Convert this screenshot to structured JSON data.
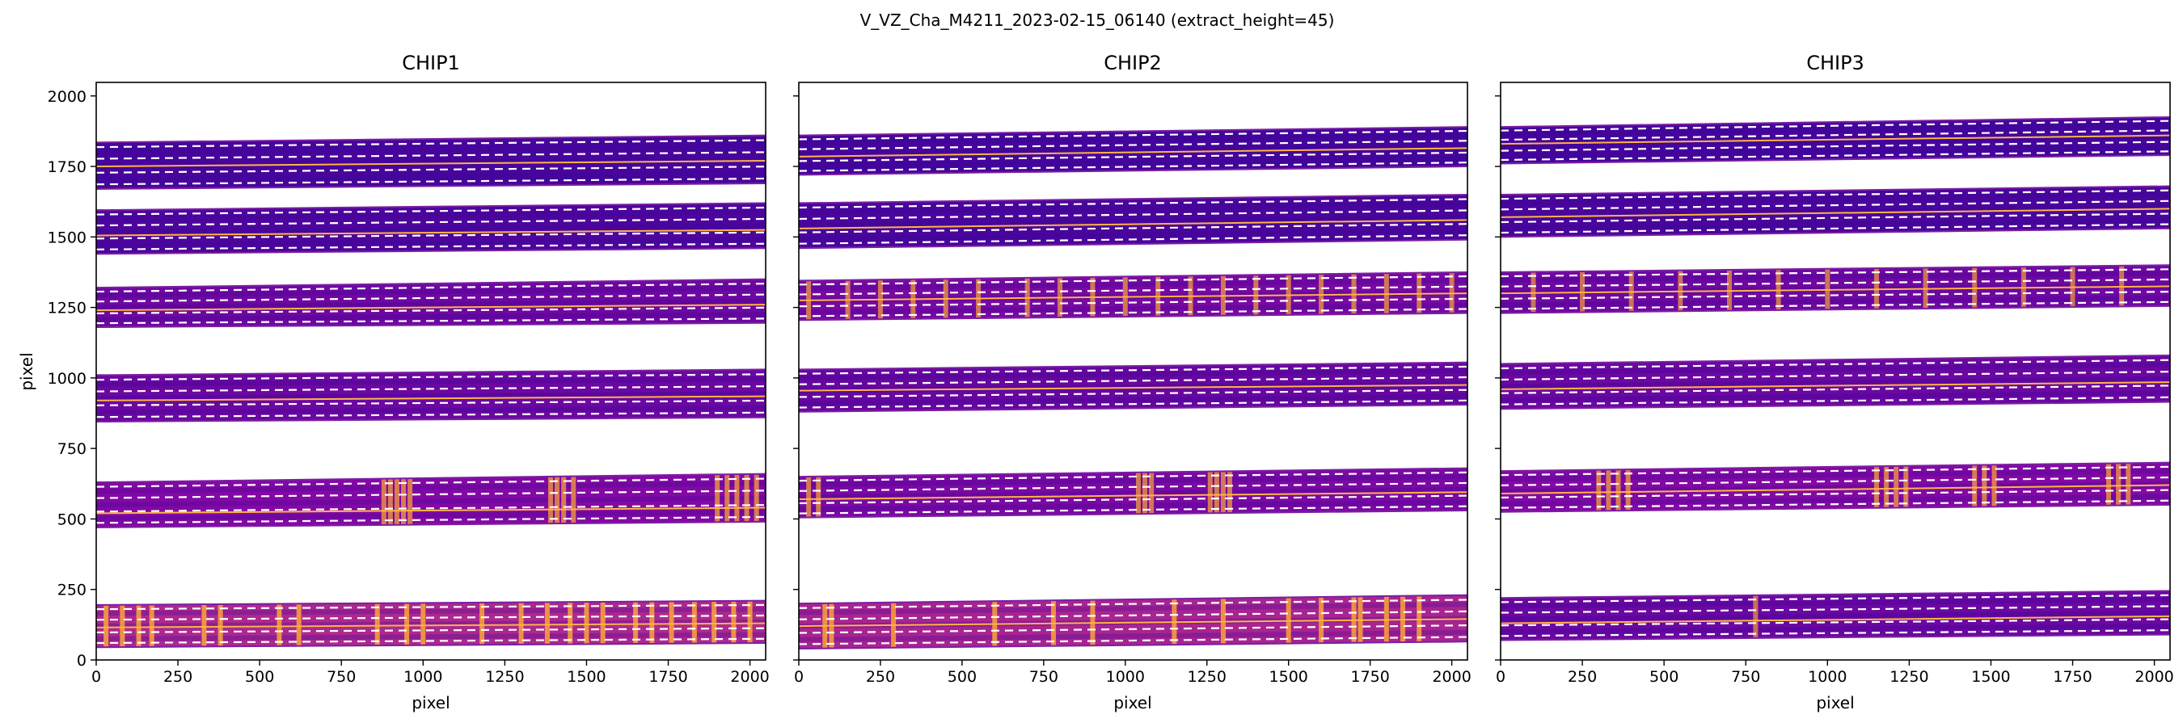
{
  "title": "V_VZ_Cha_M4211_2023-02-15_06140  (extract_height=45)",
  "colors": {
    "trace_center": "#ffb347",
    "extract_bound": "#ffffff",
    "low": "#3a049a",
    "mid": "#8b0aa5",
    "high": "#fca636",
    "frame": "#000000"
  },
  "chart_data": [
    {
      "type": "heatmap",
      "title": "CHIP1",
      "xlabel": "pixel",
      "ylabel": "pixel",
      "xlim": [
        0,
        2048
      ],
      "ylim": [
        0,
        2048
      ],
      "xticks": [
        0,
        250,
        500,
        750,
        1000,
        1250,
        1500,
        1750,
        2000
      ],
      "yticks": [
        0,
        250,
        500,
        750,
        1000,
        1250,
        1500,
        1750,
        2000
      ],
      "orders": [
        {
          "y_bottom": [
            45,
            60
          ],
          "y_top": [
            195,
            210
          ],
          "center": [
            115,
            130
          ],
          "intensity": 0.75,
          "lines": [
            30,
            80,
            130,
            170,
            330,
            380,
            560,
            620,
            860,
            950,
            1000,
            1180,
            1300,
            1380,
            1450,
            1500,
            1550,
            1650,
            1700,
            1760,
            1830,
            1890,
            1950,
            2000
          ]
        },
        {
          "y_bottom": [
            470,
            490
          ],
          "y_top": [
            630,
            660
          ],
          "center": [
            520,
            540
          ],
          "intensity": 0.45,
          "lines": [
            880,
            900,
            920,
            940,
            960,
            1390,
            1410,
            1430,
            1460,
            1900,
            1930,
            1960,
            1990,
            2020
          ]
        },
        {
          "y_bottom": [
            845,
            860
          ],
          "y_top": [
            1010,
            1030
          ],
          "center": [
            920,
            935
          ],
          "intensity": 0.3,
          "lines": []
        },
        {
          "y_bottom": [
            1180,
            1195
          ],
          "y_top": [
            1320,
            1350
          ],
          "center": [
            1240,
            1260
          ],
          "intensity": 0.32,
          "lines": []
        },
        {
          "y_bottom": [
            1440,
            1460
          ],
          "y_top": [
            1595,
            1620
          ],
          "center": [
            1505,
            1525
          ],
          "intensity": 0.12,
          "lines": []
        },
        {
          "y_bottom": [
            1670,
            1690
          ],
          "y_top": [
            1835,
            1860
          ],
          "center": [
            1750,
            1770
          ],
          "intensity": 0.08,
          "lines": []
        }
      ]
    },
    {
      "type": "heatmap",
      "title": "CHIP2",
      "xlabel": "pixel",
      "ylabel": "",
      "xlim": [
        0,
        2048
      ],
      "ylim": [
        0,
        2048
      ],
      "xticks": [
        0,
        250,
        500,
        750,
        1000,
        1250,
        1500,
        1750,
        2000
      ],
      "yticks": [
        0,
        250,
        500,
        750,
        1000,
        1250,
        1500,
        1750,
        2000
      ],
      "orders": [
        {
          "y_bottom": [
            40,
            65
          ],
          "y_top": [
            200,
            230
          ],
          "center": [
            120,
            145
          ],
          "intensity": 0.72,
          "lines": [
            80,
            100,
            290,
            600,
            780,
            900,
            1150,
            1300,
            1500,
            1600,
            1700,
            1720,
            1800,
            1850,
            1900
          ]
        },
        {
          "y_bottom": [
            505,
            530
          ],
          "y_top": [
            650,
            680
          ],
          "center": [
            570,
            595
          ],
          "intensity": 0.4,
          "lines": [
            30,
            60,
            1040,
            1060,
            1080,
            1260,
            1280,
            1300,
            1320
          ]
        },
        {
          "y_bottom": [
            880,
            905
          ],
          "y_top": [
            1030,
            1055
          ],
          "center": [
            955,
            975
          ],
          "intensity": 0.28,
          "lines": []
        },
        {
          "y_bottom": [
            1205,
            1230
          ],
          "y_top": [
            1345,
            1375
          ],
          "center": [
            1275,
            1300
          ],
          "intensity": 0.38,
          "lines": [
            30,
            150,
            250,
            350,
            450,
            550,
            700,
            800,
            900,
            1000,
            1100,
            1200,
            1300,
            1400,
            1500,
            1600,
            1700,
            1800,
            1900,
            2000
          ]
        },
        {
          "y_bottom": [
            1460,
            1490
          ],
          "y_top": [
            1620,
            1650
          ],
          "center": [
            1530,
            1560
          ],
          "intensity": 0.1,
          "lines": []
        },
        {
          "y_bottom": [
            1720,
            1750
          ],
          "y_top": [
            1860,
            1890
          ],
          "center": [
            1785,
            1815
          ],
          "intensity": 0.07,
          "lines": []
        }
      ]
    },
    {
      "type": "heatmap",
      "title": "CHIP3",
      "xlabel": "pixel",
      "ylabel": "",
      "xlim": [
        0,
        2048
      ],
      "ylim": [
        0,
        2048
      ],
      "xticks": [
        0,
        250,
        500,
        750,
        1000,
        1250,
        1500,
        1750,
        2000
      ],
      "yticks": [
        0,
        250,
        500,
        750,
        1000,
        1250,
        1500,
        1750,
        2000
      ],
      "orders": [
        {
          "y_bottom": [
            70,
            90
          ],
          "y_top": [
            220,
            245
          ],
          "center": [
            130,
            155
          ],
          "intensity": 0.3,
          "lines": [
            780
          ]
        },
        {
          "y_bottom": [
            525,
            550
          ],
          "y_top": [
            670,
            700
          ],
          "center": [
            590,
            620
          ],
          "intensity": 0.45,
          "lines": [
            300,
            330,
            360,
            390,
            1150,
            1180,
            1210,
            1240,
            1450,
            1480,
            1510,
            1860,
            1890,
            1920
          ]
        },
        {
          "y_bottom": [
            890,
            915
          ],
          "y_top": [
            1050,
            1080
          ],
          "center": [
            960,
            985
          ],
          "intensity": 0.3,
          "lines": []
        },
        {
          "y_bottom": [
            1230,
            1255
          ],
          "y_top": [
            1375,
            1400
          ],
          "center": [
            1300,
            1325
          ],
          "intensity": 0.33,
          "lines": [
            100,
            250,
            400,
            550,
            700,
            850,
            1000,
            1150,
            1300,
            1450,
            1600,
            1750,
            1900
          ]
        },
        {
          "y_bottom": [
            1500,
            1530
          ],
          "y_top": [
            1650,
            1680
          ],
          "center": [
            1570,
            1600
          ],
          "intensity": 0.1,
          "lines": []
        },
        {
          "y_bottom": [
            1760,
            1790
          ],
          "y_top": [
            1890,
            1925
          ],
          "center": [
            1830,
            1860
          ],
          "intensity": 0.07,
          "lines": []
        }
      ]
    }
  ]
}
